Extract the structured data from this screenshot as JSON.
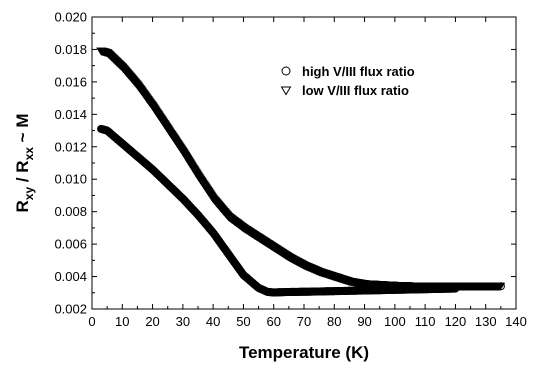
{
  "chart_data": {
    "type": "scatter",
    "xlabel": "Temperature (K)",
    "ylabel": {
      "r1": "R",
      "sub1": "xy",
      "mid": " / R",
      "sub2": "xx",
      "tail": " ~ M"
    },
    "xlim": [
      0,
      140
    ],
    "ylim": [
      0.002,
      0.02
    ],
    "xticks": [
      0,
      10,
      20,
      30,
      40,
      50,
      60,
      70,
      80,
      90,
      100,
      110,
      120,
      130,
      140
    ],
    "yticks": [
      "0.002",
      "0.004",
      "0.006",
      "0.008",
      "0.010",
      "0.012",
      "0.014",
      "0.016",
      "0.018",
      "0.020"
    ],
    "grid": false,
    "legend_position": "top-right",
    "series": [
      {
        "name": "high V/III flux ratio",
        "marker": "circle",
        "color": "#000000",
        "x": [
          3,
          5,
          10,
          15,
          20,
          25,
          30,
          35,
          40,
          45,
          50,
          55,
          58,
          60,
          62,
          65,
          70,
          75,
          80,
          85,
          90,
          95,
          100,
          105,
          110,
          115,
          120
        ],
        "y": [
          0.0131,
          0.013,
          0.0122,
          0.0114,
          0.0106,
          0.0097,
          0.0088,
          0.0078,
          0.0067,
          0.0054,
          0.0041,
          0.0033,
          0.00305,
          0.00302,
          0.00303,
          0.00305,
          0.00306,
          0.00308,
          0.0031,
          0.00312,
          0.00314,
          0.00316,
          0.00318,
          0.0032,
          0.00322,
          0.00324,
          0.00326
        ]
      },
      {
        "name": "low V/III flux ratio",
        "marker": "triangle-down",
        "color": "#000000",
        "x": [
          3,
          5,
          10,
          15,
          20,
          25,
          30,
          35,
          40,
          45,
          50,
          55,
          60,
          65,
          70,
          75,
          80,
          85,
          90,
          95,
          100,
          105,
          110,
          115,
          120,
          125,
          130,
          135
        ],
        "y": [
          0.0179,
          0.0178,
          0.0169,
          0.0158,
          0.0145,
          0.0131,
          0.0117,
          0.0102,
          0.0088,
          0.0077,
          0.007,
          0.0064,
          0.0058,
          0.0052,
          0.0047,
          0.0043,
          0.004,
          0.0037,
          0.00355,
          0.0035,
          0.00345,
          0.00342,
          0.0034,
          0.0034,
          0.0034,
          0.0034,
          0.0034,
          0.0034
        ]
      }
    ]
  }
}
